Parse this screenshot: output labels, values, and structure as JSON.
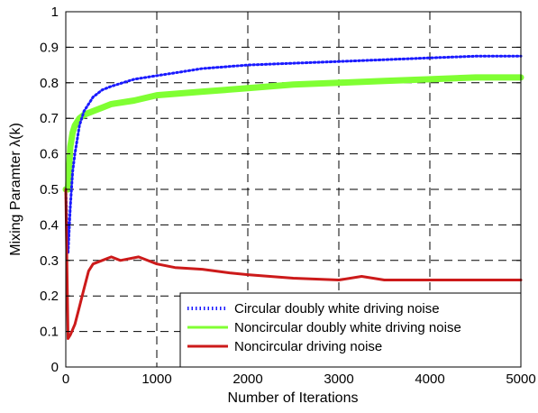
{
  "chart_data": {
    "type": "line",
    "title": "",
    "xlabel": "Number of Iterations",
    "ylabel": "Mixing Paramter λ(k)",
    "xlim": [
      0,
      5000
    ],
    "ylim": [
      0,
      1
    ],
    "xticks": [
      0,
      1000,
      2000,
      3000,
      4000,
      5000
    ],
    "yticks": [
      0,
      0.1,
      0.2,
      0.3,
      0.4,
      0.5,
      0.6,
      0.7,
      0.8,
      0.9,
      1
    ],
    "xtick_labels": [
      "0",
      "1000",
      "2000",
      "3000",
      "4000",
      "5000"
    ],
    "ytick_labels": [
      "0",
      "0.1",
      "0.2",
      "0.3",
      "0.4",
      "0.5",
      "0.6",
      "0.7",
      "0.8",
      "0.9",
      "1"
    ],
    "grid": true,
    "legend_position": "bottom-right",
    "series": [
      {
        "name": "Circular doubly white driving noise",
        "color": "#1a1aff",
        "style": "dotted",
        "x": [
          0,
          25,
          50,
          75,
          100,
          150,
          200,
          300,
          400,
          500,
          750,
          1000,
          1250,
          1500,
          1750,
          2000,
          2500,
          3000,
          3500,
          4000,
          4500,
          5000
        ],
        "y": [
          0.5,
          0.32,
          0.45,
          0.55,
          0.6,
          0.68,
          0.72,
          0.76,
          0.78,
          0.79,
          0.81,
          0.82,
          0.83,
          0.84,
          0.845,
          0.85,
          0.855,
          0.86,
          0.865,
          0.87,
          0.875,
          0.875
        ]
      },
      {
        "name": "Noncircular doubly white driving noise",
        "color": "#80ff33",
        "style": "solid",
        "x": [
          0,
          25,
          50,
          75,
          100,
          150,
          200,
          300,
          400,
          500,
          750,
          1000,
          1250,
          1500,
          1750,
          2000,
          2500,
          3000,
          3500,
          4000,
          4500,
          5000
        ],
        "y": [
          0.5,
          0.5,
          0.62,
          0.66,
          0.68,
          0.7,
          0.71,
          0.72,
          0.73,
          0.74,
          0.75,
          0.765,
          0.77,
          0.775,
          0.78,
          0.785,
          0.795,
          0.8,
          0.805,
          0.81,
          0.815,
          0.815
        ]
      },
      {
        "name": "Noncircular driving noise",
        "color": "#cc1a1a",
        "style": "solid",
        "x": [
          0,
          25,
          50,
          100,
          150,
          200,
          250,
          300,
          400,
          500,
          600,
          800,
          1000,
          1200,
          1500,
          1800,
          2000,
          2500,
          3000,
          3250,
          3500,
          4000,
          4500,
          5000
        ],
        "y": [
          0.5,
          0.08,
          0.09,
          0.12,
          0.17,
          0.22,
          0.27,
          0.29,
          0.3,
          0.31,
          0.3,
          0.31,
          0.29,
          0.28,
          0.275,
          0.265,
          0.26,
          0.25,
          0.245,
          0.255,
          0.245,
          0.245,
          0.245,
          0.245
        ]
      }
    ]
  }
}
